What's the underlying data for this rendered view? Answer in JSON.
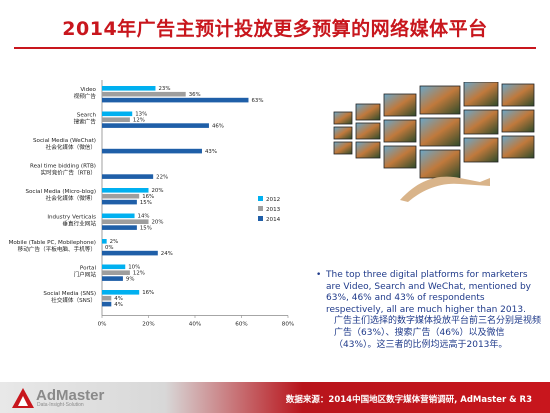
{
  "header": {
    "title": "2014年广告主预计投放更多预算的网络媒体平台"
  },
  "chart_data": {
    "type": "bar",
    "orientation": "horizontal",
    "categories": [
      [
        "Video",
        "视频广告"
      ],
      [
        "Search",
        "搜索广告"
      ],
      [
        "Social Media (WeChat)",
        "社会化媒体（微信）"
      ],
      [
        "Real time bidding (RTB)",
        "实时竞价广告（RTB）"
      ],
      [
        "Social Media (Micro-blog)",
        "社会化媒体（微博）"
      ],
      [
        "Industry Verticals",
        "垂直行业网站"
      ],
      [
        "Mobile (Table PC, Mobilephone)",
        "移动广告（平板电脑、手机等）"
      ],
      [
        "Portal",
        "门户网站"
      ],
      [
        "Social Media (SNS)",
        "社交媒体（SNS）"
      ]
    ],
    "series": [
      {
        "name": "2012",
        "color": "#00b0f0",
        "values": [
          23,
          13,
          null,
          null,
          20,
          14,
          2,
          10,
          16
        ]
      },
      {
        "name": "2013",
        "color": "#9e9e9e",
        "values": [
          36,
          12,
          null,
          null,
          16,
          20,
          0,
          12,
          4
        ]
      },
      {
        "name": "2014",
        "color": "#1f5fa8",
        "values": [
          63,
          46,
          43,
          22,
          15,
          15,
          24,
          9,
          4
        ]
      }
    ],
    "value_labels": [
      [
        "23%",
        "36%",
        "63%"
      ],
      [
        "13%",
        "12%",
        "46%"
      ],
      [
        null,
        null,
        "43%"
      ],
      [
        null,
        null,
        "22%"
      ],
      [
        "20%",
        "16%",
        "15%"
      ],
      [
        "14%",
        "20%",
        "15%"
      ],
      [
        "2%",
        "0%",
        "24%"
      ],
      [
        "10%",
        "12%",
        "9%"
      ],
      [
        "16%",
        "4%",
        "4%"
      ]
    ],
    "xlim": [
      0,
      80
    ],
    "xticks": [
      "0%",
      "20%",
      "40%",
      "60%",
      "80%"
    ],
    "legend_position": "right"
  },
  "note": {
    "bullet": "•",
    "en": "The top three digital platforms for marketers are Video, Search and WeChat, mentioned by 63%, 46% and 43% of respondents respectively, all are much higher than 2013.",
    "cn": "广告主们选择的数字媒体投放平台前三名分别是视频广告（63%）、搜索广告（46%）以及微信（43%）。这三者的比例均远高于2013年。"
  },
  "footer": {
    "logo": "AdMaster",
    "logo_sub": "Data·Insight·Solution",
    "source": "数据来源：2014中国地区数字媒体营销调研, AdMaster & R3"
  }
}
